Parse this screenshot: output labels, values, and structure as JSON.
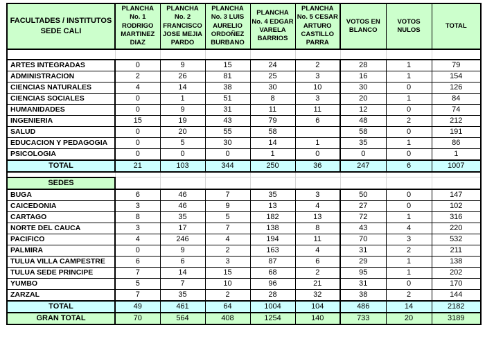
{
  "colors": {
    "header_fill": "#CCFFCC",
    "total_fill": "#CCFFFF",
    "grand_total_fill": "#CCFFCC",
    "border": "#000000",
    "light_grid": "#D4D4D4",
    "text": "#000000"
  },
  "chart_data": {
    "type": "table",
    "title": "FACULTADES / INSTITUTOS SEDE CALI",
    "columns": [
      "PLANCHA No. 1 RODRIGO MARTINEZ DIAZ",
      "PLANCHA No. 2 FRANCISCO JOSE MEJIA PARDO",
      "PLANCHA No. 3 LUIS AURELIO ORDOÑEZ BURBANO",
      "PLANCHA No. 4 EDGAR VARELA BARRIOS",
      "PLANCHA No. 5 CESAR ARTURO CASTILLO PARRA",
      "VOTOS EN BLANCO",
      "VOTOS NULOS",
      "TOTAL"
    ],
    "sections": [
      {
        "name": "FACULTADES / INSTITUTOS SEDE CALI",
        "rows": [
          {
            "label": "ARTES INTEGRADAS",
            "values": [
              0,
              9,
              15,
              24,
              2,
              28,
              1,
              79
            ]
          },
          {
            "label": "ADMINISTRACION",
            "values": [
              2,
              26,
              81,
              25,
              3,
              16,
              1,
              154
            ]
          },
          {
            "label": "CIENCIAS NATURALES",
            "values": [
              4,
              14,
              38,
              30,
              10,
              30,
              0,
              126
            ]
          },
          {
            "label": "CIENCIAS SOCIALES",
            "values": [
              0,
              1,
              51,
              8,
              3,
              20,
              1,
              84
            ]
          },
          {
            "label": "HUMANIDADES",
            "values": [
              0,
              9,
              31,
              11,
              11,
              12,
              0,
              74
            ]
          },
          {
            "label": "INGENIERIA",
            "values": [
              15,
              19,
              43,
              79,
              6,
              48,
              2,
              212
            ]
          },
          {
            "label": "SALUD",
            "values": [
              0,
              20,
              55,
              58,
              null,
              58,
              0,
              191
            ]
          },
          {
            "label": "EDUCACION Y PEDAGOGIA",
            "values": [
              0,
              5,
              30,
              14,
              1,
              35,
              1,
              86
            ]
          },
          {
            "label": "PSICOLOGIA",
            "values": [
              0,
              0,
              0,
              1,
              0,
              0,
              0,
              1
            ]
          }
        ],
        "total": {
          "label": "TOTAL",
          "values": [
            21,
            103,
            344,
            250,
            36,
            247,
            6,
            1007
          ]
        }
      },
      {
        "name": "SEDES",
        "rows": [
          {
            "label": "BUGA",
            "values": [
              6,
              46,
              7,
              35,
              3,
              50,
              0,
              147
            ]
          },
          {
            "label": "CAICEDONIA",
            "values": [
              3,
              46,
              9,
              13,
              4,
              27,
              0,
              102
            ]
          },
          {
            "label": "CARTAGO",
            "values": [
              8,
              35,
              5,
              182,
              13,
              72,
              1,
              316
            ]
          },
          {
            "label": "NORTE DEL CAUCA",
            "values": [
              3,
              17,
              7,
              138,
              8,
              43,
              4,
              220
            ]
          },
          {
            "label": "PACIFICO",
            "values": [
              4,
              246,
              4,
              194,
              11,
              70,
              3,
              532
            ]
          },
          {
            "label": "PALMIRA",
            "values": [
              0,
              9,
              2,
              163,
              4,
              31,
              2,
              211
            ]
          },
          {
            "label": "TULUA VILLA CAMPESTRE",
            "values": [
              6,
              6,
              3,
              87,
              6,
              29,
              1,
              138
            ]
          },
          {
            "label": "TULUA SEDE PRINCIPE",
            "values": [
              7,
              14,
              15,
              68,
              2,
              95,
              1,
              202
            ]
          },
          {
            "label": "YUMBO",
            "values": [
              5,
              7,
              10,
              96,
              21,
              31,
              0,
              170
            ]
          },
          {
            "label": "ZARZAL",
            "values": [
              7,
              35,
              2,
              28,
              32,
              38,
              2,
              144
            ]
          }
        ],
        "total": {
          "label": "TOTAL",
          "values": [
            49,
            461,
            64,
            1004,
            104,
            486,
            14,
            2182
          ]
        }
      }
    ],
    "grand_total": {
      "label": "GRAN TOTAL",
      "values": [
        70,
        564,
        408,
        1254,
        140,
        733,
        20,
        3189
      ]
    }
  }
}
